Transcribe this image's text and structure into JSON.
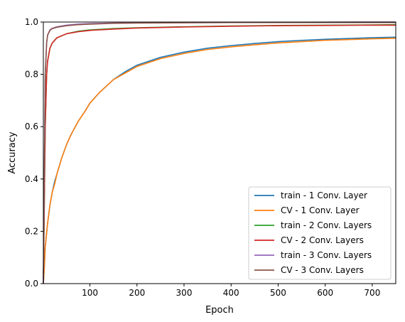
{
  "chart_data": {
    "type": "line",
    "xlabel": "Epoch",
    "ylabel": "Accuracy",
    "xlim": [
      1,
      750
    ],
    "ylim": [
      0.0,
      1.0
    ],
    "xticks": [
      100,
      200,
      300,
      400,
      500,
      600,
      700
    ],
    "xtick_labels": [
      "100",
      "200",
      "300",
      "400",
      "500",
      "600",
      "700"
    ],
    "yticks": [
      0.0,
      0.2,
      0.4,
      0.6,
      0.8,
      1.0
    ],
    "ytick_labels": [
      "0.0",
      "0.2",
      "0.4",
      "0.6",
      "0.8",
      "1.0"
    ],
    "grid": false,
    "legend_position": "lower-right",
    "series": [
      {
        "name": "train - 1 Conv. Layer",
        "color": "#1f77b4",
        "x": [
          1,
          3,
          5,
          10,
          15,
          20,
          25,
          30,
          40,
          50,
          60,
          75,
          90,
          100,
          120,
          150,
          175,
          200,
          250,
          300,
          350,
          400,
          450,
          500,
          550,
          600,
          650,
          700,
          750
        ],
        "y": [
          0.0,
          0.06,
          0.14,
          0.23,
          0.3,
          0.35,
          0.39,
          0.42,
          0.48,
          0.53,
          0.57,
          0.62,
          0.66,
          0.69,
          0.73,
          0.78,
          0.81,
          0.835,
          0.865,
          0.885,
          0.9,
          0.91,
          0.918,
          0.925,
          0.93,
          0.934,
          0.937,
          0.94,
          0.942
        ]
      },
      {
        "name": "CV - 1 Conv. Layer",
        "color": "#ff7f0e",
        "x": [
          1,
          3,
          5,
          10,
          15,
          20,
          25,
          30,
          40,
          50,
          60,
          75,
          90,
          100,
          120,
          150,
          175,
          200,
          250,
          300,
          350,
          400,
          450,
          500,
          550,
          600,
          650,
          700,
          750
        ],
        "y": [
          0.0,
          0.06,
          0.14,
          0.23,
          0.3,
          0.35,
          0.38,
          0.42,
          0.48,
          0.53,
          0.57,
          0.62,
          0.66,
          0.69,
          0.73,
          0.78,
          0.805,
          0.83,
          0.86,
          0.88,
          0.895,
          0.905,
          0.913,
          0.92,
          0.925,
          0.93,
          0.933,
          0.936,
          0.938
        ]
      },
      {
        "name": "train - 2 Conv. Layers",
        "color": "#2ca02c",
        "x": [
          1,
          3,
          5,
          8,
          10,
          15,
          20,
          30,
          50,
          75,
          100,
          150,
          200,
          300,
          400,
          500,
          600,
          700,
          750
        ],
        "y": [
          0.0,
          0.3,
          0.6,
          0.8,
          0.85,
          0.9,
          0.92,
          0.94,
          0.955,
          0.965,
          0.97,
          0.975,
          0.978,
          0.982,
          0.985,
          0.987,
          0.988,
          0.989,
          0.99
        ]
      },
      {
        "name": "CV - 2 Conv. Layers",
        "color": "#d62728",
        "x": [
          1,
          3,
          5,
          8,
          10,
          15,
          20,
          30,
          50,
          75,
          100,
          150,
          200,
          300,
          400,
          500,
          600,
          700,
          750
        ],
        "y": [
          0.0,
          0.3,
          0.6,
          0.8,
          0.85,
          0.9,
          0.92,
          0.94,
          0.955,
          0.963,
          0.968,
          0.973,
          0.977,
          0.981,
          0.984,
          0.986,
          0.987,
          0.988,
          0.988
        ]
      },
      {
        "name": "train - 3 Conv. Layers",
        "color": "#9467bd",
        "x": [
          1,
          3,
          5,
          8,
          10,
          15,
          20,
          30,
          50,
          75,
          100,
          150,
          200,
          300,
          400,
          500,
          750
        ],
        "y": [
          0.0,
          0.4,
          0.8,
          0.92,
          0.95,
          0.97,
          0.976,
          0.982,
          0.988,
          0.992,
          0.994,
          0.996,
          0.997,
          0.998,
          0.999,
          0.999,
          1.0
        ]
      },
      {
        "name": "CV - 3 Conv. Layers",
        "color": "#8c564b",
        "x": [
          1,
          3,
          5,
          8,
          10,
          15,
          20,
          30,
          50,
          75,
          100,
          150,
          200,
          300,
          400,
          500,
          750
        ],
        "y": [
          0.0,
          0.4,
          0.8,
          0.92,
          0.95,
          0.968,
          0.975,
          0.98,
          0.986,
          0.99,
          0.992,
          0.995,
          0.996,
          0.997,
          0.998,
          0.998,
          0.998
        ]
      }
    ]
  }
}
